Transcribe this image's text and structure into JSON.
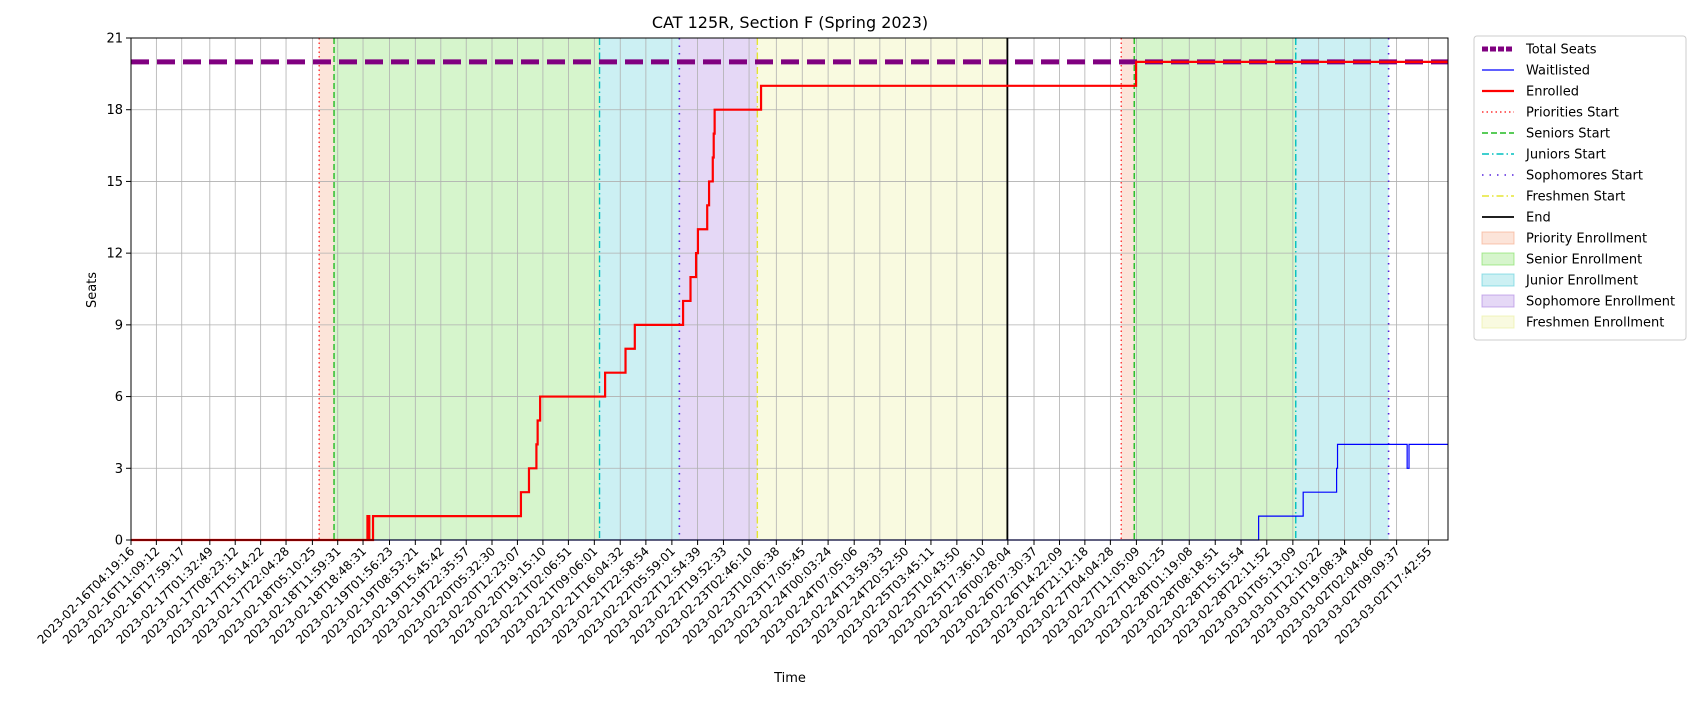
{
  "chart_data": {
    "type": "line",
    "title": "CAT 125R, Section F (Spring 2023)",
    "xlabel": "Time",
    "ylabel": "Seats",
    "xlim": [
      "2023-02-16T04:19:16",
      "2023-03-02T23:00:00"
    ],
    "ylim": [
      0,
      21
    ],
    "y_ticks": [
      0,
      3,
      6,
      9,
      12,
      15,
      18,
      21
    ],
    "x_ticks": [
      "2023-02-16T04:19:16",
      "2023-02-16T11:09:12",
      "2023-02-16T17:59:17",
      "2023-02-17T01:32:49",
      "2023-02-17T08:23:12",
      "2023-02-17T15:14:22",
      "2023-02-17T22:04:28",
      "2023-02-18T05:10:25",
      "2023-02-18T11:59:31",
      "2023-02-18T18:48:31",
      "2023-02-19T01:56:23",
      "2023-02-19T08:53:21",
      "2023-02-19T15:45:42",
      "2023-02-19T22:35:57",
      "2023-02-20T05:32:30",
      "2023-02-20T12:23:07",
      "2023-02-20T19:15:10",
      "2023-02-21T02:06:51",
      "2023-02-21T09:06:01",
      "2023-02-21T16:04:32",
      "2023-02-21T22:58:54",
      "2023-02-22T05:59:01",
      "2023-02-22T12:54:39",
      "2023-02-22T19:52:33",
      "2023-02-23T02:46:10",
      "2023-02-23T10:06:38",
      "2023-02-23T17:05:45",
      "2023-02-24T00:03:24",
      "2023-02-24T07:05:06",
      "2023-02-24T13:59:33",
      "2023-02-24T20:52:50",
      "2023-02-25T03:45:11",
      "2023-02-25T10:43:50",
      "2023-02-25T17:36:10",
      "2023-02-26T00:28:04",
      "2023-02-26T07:30:37",
      "2023-02-26T14:22:09",
      "2023-02-26T21:12:18",
      "2023-02-27T04:04:28",
      "2023-02-27T11:05:09",
      "2023-02-27T18:01:25",
      "2023-02-28T01:19:08",
      "2023-02-28T08:18:51",
      "2023-02-28T15:15:54",
      "2023-02-28T22:11:52",
      "2023-03-01T05:13:09",
      "2023-03-01T12:10:22",
      "2023-03-01T19:08:34",
      "2023-03-02T02:04:06",
      "2023-03-02T09:09:37",
      "2023-03-02T17:42:55"
    ],
    "grid": true,
    "legend_position": "outside-right",
    "regions": [
      {
        "name": "Priority Enrollment",
        "start": "2023-02-18T07:00:00",
        "end": "2023-02-18T11:00:00",
        "color": "#f4a582"
      },
      {
        "name": "Senior Enrollment",
        "start": "2023-02-18T11:00:00",
        "end": "2023-02-21T10:30:00",
        "color": "#77dd55"
      },
      {
        "name": "Junior Enrollment",
        "start": "2023-02-21T10:30:00",
        "end": "2023-02-22T08:00:00",
        "color": "#55ccd8"
      },
      {
        "name": "Sophomore Enrollment",
        "start": "2023-02-22T08:00:00",
        "end": "2023-02-23T05:00:00",
        "color": "#a97fe0"
      },
      {
        "name": "Freshmen Enrollment",
        "start": "2023-02-23T05:00:00",
        "end": "2023-02-26T00:20:00",
        "color": "#eaee99"
      },
      {
        "name": "Priority Enrollment",
        "start": "2023-02-27T07:00:00",
        "end": "2023-02-27T10:30:00",
        "color": "#f4a582"
      },
      {
        "name": "Senior Enrollment",
        "start": "2023-02-27T10:30:00",
        "end": "2023-03-01T06:00:00",
        "color": "#77dd55"
      },
      {
        "name": "Junior Enrollment",
        "start": "2023-03-01T06:00:00",
        "end": "2023-03-02T07:00:00",
        "color": "#55ccd8"
      }
    ],
    "vlines": [
      {
        "name": "Priorities Start",
        "x": "2023-02-18T07:00:00",
        "color": "#ff3333",
        "dash": "1.5,3",
        "width": 1.4
      },
      {
        "name": "Seniors Start",
        "x": "2023-02-18T11:00:00",
        "color": "#22bb22",
        "dash": "6,3",
        "width": 1.4
      },
      {
        "name": "Juniors Start",
        "x": "2023-02-21T10:30:00",
        "color": "#00bfbf",
        "dash": "7,3,1.5,3",
        "width": 1.4
      },
      {
        "name": "Sophomores Start",
        "x": "2023-02-22T08:00:00",
        "color": "#5522dd",
        "dash": "1.5,6",
        "width": 1.6
      },
      {
        "name": "Freshmen Start",
        "x": "2023-02-23T05:00:00",
        "color": "#e5e533",
        "dash": "7,3,1.5,3",
        "width": 1.4
      },
      {
        "name": "End",
        "x": "2023-02-26T00:20:00",
        "color": "#000000",
        "dash": "",
        "width": 1.8
      },
      {
        "name": "Priorities Start",
        "x": "2023-02-27T07:00:00",
        "color": "#ff3333",
        "dash": "1.5,3",
        "width": 1.4
      },
      {
        "name": "Seniors Start",
        "x": "2023-02-27T10:30:00",
        "color": "#22bb22",
        "dash": "6,3",
        "width": 1.4
      },
      {
        "name": "Juniors Start",
        "x": "2023-03-01T06:00:00",
        "color": "#00bfbf",
        "dash": "7,3,1.5,3",
        "width": 1.4
      },
      {
        "name": "Sophomores Start",
        "x": "2023-03-02T07:00:00",
        "color": "#5522dd",
        "dash": "1.5,6",
        "width": 1.6
      }
    ],
    "series": [
      {
        "name": "Total Seats",
        "color": "#800080",
        "style": "dashed",
        "points": [
          [
            "2023-02-16T04:19:16",
            20
          ],
          [
            "2023-03-02T23:00:00",
            20
          ]
        ]
      },
      {
        "name": "Waitlisted",
        "color": "#0000ff",
        "style": "solid",
        "points": [
          [
            "2023-02-16T04:19:16",
            0
          ],
          [
            "2023-02-28T20:00:00",
            0
          ],
          [
            "2023-02-28T20:00:00",
            1
          ],
          [
            "2023-03-01T08:00:00",
            1
          ],
          [
            "2023-03-01T08:00:00",
            2
          ],
          [
            "2023-03-01T17:00:00",
            2
          ],
          [
            "2023-03-01T17:00:00",
            3
          ],
          [
            "2023-03-01T17:15:00",
            3
          ],
          [
            "2023-03-01T17:15:00",
            4
          ],
          [
            "2023-03-02T12:00:00",
            4
          ],
          [
            "2023-03-02T12:00:00",
            3
          ],
          [
            "2023-03-02T12:30:00",
            3
          ],
          [
            "2023-03-02T12:30:00",
            4
          ],
          [
            "2023-03-02T23:00:00",
            4
          ]
        ]
      },
      {
        "name": "Enrolled",
        "color": "#ff0000",
        "style": "solid",
        "points": [
          [
            "2023-02-16T04:19:16",
            0
          ],
          [
            "2023-02-18T20:00:00",
            0
          ],
          [
            "2023-02-18T20:00:00",
            1
          ],
          [
            "2023-02-18T20:30:00",
            1
          ],
          [
            "2023-02-18T20:30:00",
            0
          ],
          [
            "2023-02-18T21:30:00",
            0
          ],
          [
            "2023-02-18T21:30:00",
            1
          ],
          [
            "2023-02-20T13:20:00",
            1
          ],
          [
            "2023-02-20T13:20:00",
            2
          ],
          [
            "2023-02-20T15:30:00",
            2
          ],
          [
            "2023-02-20T15:30:00",
            3
          ],
          [
            "2023-02-20T17:30:00",
            3
          ],
          [
            "2023-02-20T17:30:00",
            4
          ],
          [
            "2023-02-20T17:50:00",
            4
          ],
          [
            "2023-02-20T17:50:00",
            5
          ],
          [
            "2023-02-20T18:30:00",
            5
          ],
          [
            "2023-02-20T18:30:00",
            6
          ],
          [
            "2023-02-21T12:00:00",
            6
          ],
          [
            "2023-02-21T12:00:00",
            7
          ],
          [
            "2023-02-21T17:30:00",
            7
          ],
          [
            "2023-02-21T17:30:00",
            8
          ],
          [
            "2023-02-21T20:00:00",
            8
          ],
          [
            "2023-02-21T20:00:00",
            9
          ],
          [
            "2023-02-22T09:00:00",
            9
          ],
          [
            "2023-02-22T09:00:00",
            10
          ],
          [
            "2023-02-22T11:00:00",
            10
          ],
          [
            "2023-02-22T11:00:00",
            11
          ],
          [
            "2023-02-22T12:30:00",
            11
          ],
          [
            "2023-02-22T12:30:00",
            12
          ],
          [
            "2023-02-22T13:00:00",
            12
          ],
          [
            "2023-02-22T13:00:00",
            13
          ],
          [
            "2023-02-22T15:30:00",
            13
          ],
          [
            "2023-02-22T15:30:00",
            14
          ],
          [
            "2023-02-22T16:00:00",
            14
          ],
          [
            "2023-02-22T16:00:00",
            15
          ],
          [
            "2023-02-22T17:00:00",
            15
          ],
          [
            "2023-02-22T17:00:00",
            16
          ],
          [
            "2023-02-22T17:15:00",
            16
          ],
          [
            "2023-02-22T17:15:00",
            17
          ],
          [
            "2023-02-22T17:30:00",
            17
          ],
          [
            "2023-02-22T17:30:00",
            18
          ],
          [
            "2023-02-23T06:00:00",
            18
          ],
          [
            "2023-02-23T06:00:00",
            19
          ],
          [
            "2023-02-27T11:00:00",
            19
          ],
          [
            "2023-02-27T11:00:00",
            20
          ],
          [
            "2023-03-02T23:00:00",
            20
          ]
        ]
      }
    ],
    "legend": [
      {
        "label": "Total Seats",
        "kind": "line",
        "color": "#800080",
        "dash": "6,2",
        "width": 5
      },
      {
        "label": "Waitlisted",
        "kind": "line",
        "color": "#0000ff",
        "dash": "",
        "width": 1.2
      },
      {
        "label": "Enrolled",
        "kind": "line",
        "color": "#ff0000",
        "dash": "",
        "width": 2.2
      },
      {
        "label": "Priorities Start",
        "kind": "line",
        "color": "#ff3333",
        "dash": "1.5,3",
        "width": 1.4
      },
      {
        "label": "Seniors Start",
        "kind": "line",
        "color": "#22bb22",
        "dash": "6,3",
        "width": 1.4
      },
      {
        "label": "Juniors Start",
        "kind": "line",
        "color": "#00bfbf",
        "dash": "7,3,1.5,3",
        "width": 1.4
      },
      {
        "label": "Sophomores Start",
        "kind": "line",
        "color": "#5522dd",
        "dash": "1.5,6",
        "width": 1.6
      },
      {
        "label": "Freshmen Start",
        "kind": "line",
        "color": "#e5e533",
        "dash": "7,3,1.5,3",
        "width": 1.4
      },
      {
        "label": "End",
        "kind": "line",
        "color": "#000000",
        "dash": "",
        "width": 1.8
      },
      {
        "label": "Priority Enrollment",
        "kind": "patch",
        "color": "#f4a582"
      },
      {
        "label": "Senior Enrollment",
        "kind": "patch",
        "color": "#77dd55"
      },
      {
        "label": "Junior Enrollment",
        "kind": "patch",
        "color": "#55ccd8"
      },
      {
        "label": "Sophomore Enrollment",
        "kind": "patch",
        "color": "#a97fe0"
      },
      {
        "label": "Freshmen Enrollment",
        "kind": "patch",
        "color": "#eaee99"
      }
    ]
  }
}
